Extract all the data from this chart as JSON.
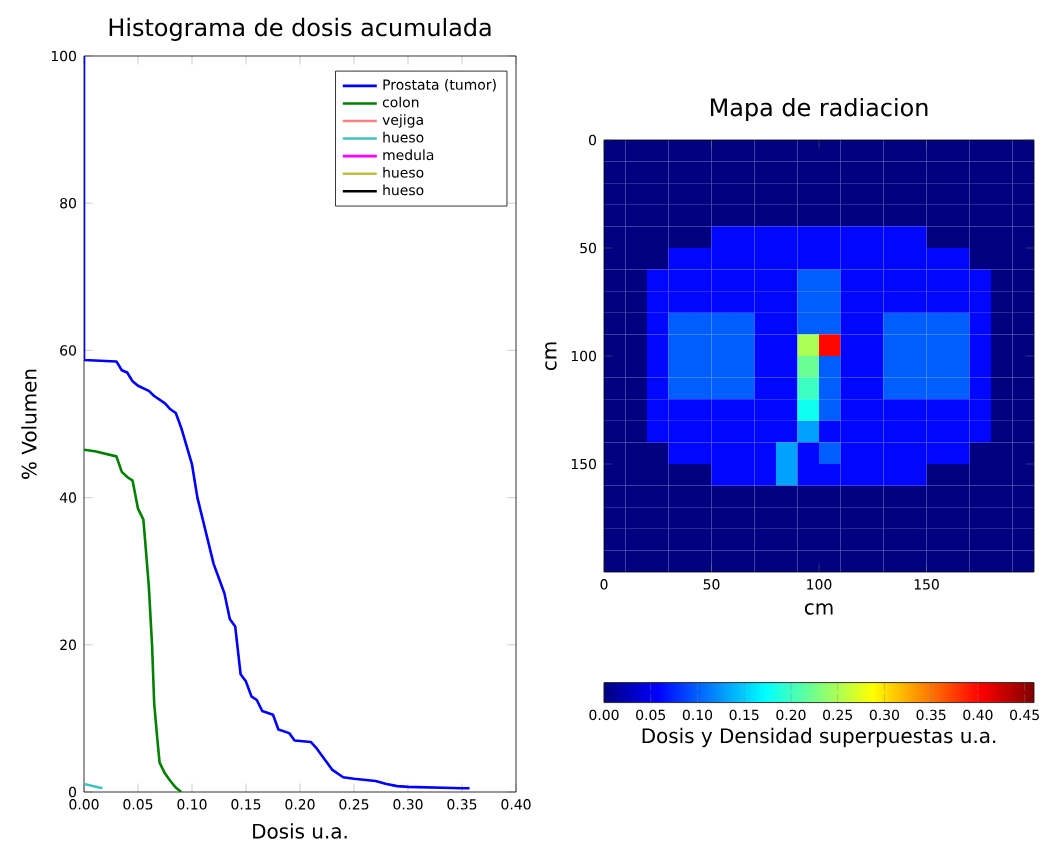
{
  "chart_data": [
    {
      "type": "line",
      "title": "Histograma de dosis acumulada",
      "xlabel": "Dosis u.a.",
      "ylabel": "% Volumen",
      "xlim": [
        0,
        0.4
      ],
      "ylim": [
        0,
        100
      ],
      "xticks": [
        {
          "value": 0,
          "label": "0.00"
        },
        {
          "value": 0.05,
          "label": "0.05"
        },
        {
          "value": 0.1,
          "label": "0.10"
        },
        {
          "value": 0.15,
          "label": "0.15"
        },
        {
          "value": 0.2,
          "label": "0.20"
        },
        {
          "value": 0.25,
          "label": "0.25"
        },
        {
          "value": 0.3,
          "label": "0.30"
        },
        {
          "value": 0.35,
          "label": "0.35"
        },
        {
          "value": 0.4,
          "label": "0.40"
        }
      ],
      "yticks": [
        0,
        20,
        40,
        60,
        80,
        100
      ],
      "grid": false,
      "legend": "top right",
      "series": [
        {
          "name": "Prostata (tumor)",
          "color": "#0000ff",
          "x": [
            0,
            0,
            0.03,
            0.035,
            0.04,
            0.045,
            0.05,
            0.06,
            0.065,
            0.07,
            0.075,
            0.08,
            0.085,
            0.09,
            0.095,
            0.1,
            0.105,
            0.11,
            0.115,
            0.12,
            0.125,
            0.13,
            0.135,
            0.14,
            0.145,
            0.15,
            0.155,
            0.16,
            0.165,
            0.175,
            0.18,
            0.19,
            0.195,
            0.21,
            0.215,
            0.22,
            0.225,
            0.23,
            0.24,
            0.25,
            0.27,
            0.28,
            0.29,
            0.3,
            0.35,
            0.357
          ],
          "values": [
            100,
            58.7,
            58.5,
            57.3,
            57,
            55.8,
            55.2,
            54.5,
            53.8,
            53.3,
            52.8,
            52,
            51.5,
            49.5,
            47,
            44.5,
            40,
            37,
            34,
            31,
            29,
            27,
            23.5,
            22.5,
            16,
            15,
            13,
            12.5,
            11,
            10.5,
            8.5,
            8,
            7,
            6.8,
            6,
            5,
            4,
            3,
            2,
            1.8,
            1.5,
            1.1,
            0.8,
            0.7,
            0.5,
            0.5
          ]
        },
        {
          "name": "colon",
          "color": "#008000",
          "x": [
            0,
            0.01,
            0.03,
            0.035,
            0.04,
            0.045,
            0.05,
            0.055,
            0.06,
            0.063,
            0.065,
            0.068,
            0.07,
            0.075,
            0.08,
            0.085,
            0.09
          ],
          "values": [
            46.5,
            46.3,
            45.6,
            43.5,
            42.8,
            42.3,
            38.5,
            37,
            28,
            20,
            12,
            7,
            4,
            2.5,
            1.5,
            0.6,
            0
          ]
        },
        {
          "name": "vejiga",
          "color": "#ff8080"
        },
        {
          "name": "hueso",
          "color": "#40c0c0",
          "x": [
            0,
            0.017
          ],
          "values": [
            1.1,
            0.5
          ]
        },
        {
          "name": "medula",
          "color": "#ff00ff"
        },
        {
          "name": "hueso",
          "color": "#c0c040"
        },
        {
          "name": "hueso",
          "color": "#000000"
        }
      ]
    },
    {
      "type": "heatmap",
      "title": "Mapa de radiacion",
      "xlabel": "cm",
      "ylabel": "cm",
      "clabel": "Dosis y Densidad superpuestas u.a.",
      "x": [
        5,
        15,
        25,
        35,
        45,
        55,
        65,
        75,
        85,
        95,
        105,
        115,
        125,
        135,
        145,
        155,
        165,
        175,
        185,
        195
      ],
      "y": [
        5,
        15,
        25,
        35,
        45,
        55,
        65,
        75,
        85,
        95,
        105,
        115,
        125,
        135,
        145,
        155,
        165,
        175,
        185,
        195
      ],
      "xlim": [
        0,
        200
      ],
      "ylim": [
        200,
        0
      ],
      "xticks": [
        0,
        50,
        100,
        150
      ],
      "yticks": [
        0,
        50,
        100,
        150
      ],
      "clim": [
        0,
        0.46
      ],
      "cticks": [
        {
          "value": 0,
          "label": "0.00"
        },
        {
          "value": 0.05,
          "label": "0.05"
        },
        {
          "value": 0.1,
          "label": "0.10"
        },
        {
          "value": 0.15,
          "label": "0.15"
        },
        {
          "value": 0.2,
          "label": "0.20"
        },
        {
          "value": 0.25,
          "label": "0.25"
        },
        {
          "value": 0.3,
          "label": "0.30"
        },
        {
          "value": 0.35,
          "label": "0.35"
        },
        {
          "value": 0.4,
          "label": "0.40"
        },
        {
          "value": 0.45,
          "label": "0.45"
        }
      ],
      "cells": [
        [
          0,
          0,
          0,
          0,
          0,
          0,
          0,
          0,
          0,
          0,
          0,
          0,
          0,
          0,
          0,
          0,
          0,
          0,
          0,
          0
        ],
        [
          0,
          0,
          0,
          0,
          0,
          0,
          0,
          0,
          0,
          0,
          0,
          0,
          0,
          0,
          0,
          0,
          0,
          0,
          0,
          0
        ],
        [
          0,
          0,
          0,
          0,
          0,
          0,
          0,
          0,
          0,
          0,
          0,
          0,
          0,
          0,
          0,
          0,
          0,
          0,
          0,
          0
        ],
        [
          0,
          0,
          0,
          0,
          0,
          0,
          0,
          0,
          0,
          0,
          0,
          0,
          0,
          0,
          0,
          0,
          0,
          0,
          0,
          0
        ],
        [
          0,
          0,
          0,
          0,
          0,
          0.06,
          0.06,
          0.06,
          0.06,
          0.06,
          0.06,
          0.06,
          0.06,
          0.06,
          0.06,
          0,
          0,
          0,
          0,
          0
        ],
        [
          0,
          0,
          0,
          0.06,
          0.06,
          0.06,
          0.06,
          0.06,
          0.06,
          0.06,
          0.06,
          0.06,
          0.06,
          0.06,
          0.06,
          0.06,
          0.06,
          0,
          0,
          0
        ],
        [
          0,
          0,
          0.06,
          0.06,
          0.06,
          0.06,
          0.06,
          0.06,
          0.06,
          0.1,
          0.1,
          0.06,
          0.06,
          0.06,
          0.06,
          0.06,
          0.06,
          0.06,
          0,
          0
        ],
        [
          0,
          0,
          0.06,
          0.06,
          0.06,
          0.06,
          0.06,
          0.06,
          0.06,
          0.1,
          0.1,
          0.06,
          0.06,
          0.06,
          0.06,
          0.06,
          0.06,
          0.06,
          0,
          0
        ],
        [
          0,
          0,
          0.06,
          0.1,
          0.1,
          0.1,
          0.1,
          0.06,
          0.06,
          0.1,
          0.1,
          0.06,
          0.06,
          0.1,
          0.1,
          0.1,
          0.1,
          0.06,
          0,
          0
        ],
        [
          0,
          0,
          0.06,
          0.1,
          0.1,
          0.1,
          0.1,
          0.06,
          0.06,
          0.25,
          0.4,
          0.06,
          0.06,
          0.1,
          0.1,
          0.1,
          0.1,
          0.06,
          0,
          0
        ],
        [
          0,
          0,
          0.06,
          0.1,
          0.1,
          0.1,
          0.1,
          0.06,
          0.06,
          0.22,
          0.1,
          0.06,
          0.06,
          0.1,
          0.1,
          0.1,
          0.1,
          0.06,
          0,
          0
        ],
        [
          0,
          0,
          0.06,
          0.1,
          0.1,
          0.1,
          0.1,
          0.06,
          0.06,
          0.2,
          0.1,
          0.06,
          0.06,
          0.1,
          0.1,
          0.1,
          0.1,
          0.06,
          0,
          0
        ],
        [
          0,
          0,
          0.06,
          0.06,
          0.06,
          0.06,
          0.06,
          0.06,
          0.06,
          0.18,
          0.1,
          0.06,
          0.06,
          0.06,
          0.06,
          0.06,
          0.06,
          0.06,
          0,
          0
        ],
        [
          0,
          0,
          0.06,
          0.06,
          0.06,
          0.06,
          0.06,
          0.06,
          0.06,
          0.13,
          0.06,
          0.06,
          0.06,
          0.06,
          0.06,
          0.06,
          0.06,
          0.06,
          0,
          0
        ],
        [
          0,
          0,
          0,
          0.06,
          0.06,
          0.06,
          0.06,
          0.06,
          0.13,
          0.06,
          0.1,
          0.06,
          0.06,
          0.06,
          0.06,
          0.06,
          0.06,
          0,
          0,
          0
        ],
        [
          0,
          0,
          0,
          0,
          0,
          0.06,
          0.06,
          0.06,
          0.13,
          0.06,
          0.06,
          0.06,
          0.06,
          0.06,
          0.06,
          0,
          0,
          0,
          0,
          0
        ],
        [
          0,
          0,
          0,
          0,
          0,
          0,
          0,
          0,
          0,
          0,
          0,
          0,
          0,
          0,
          0,
          0,
          0,
          0,
          0,
          0
        ],
        [
          0,
          0,
          0,
          0,
          0,
          0,
          0,
          0,
          0,
          0,
          0,
          0,
          0,
          0,
          0,
          0,
          0,
          0,
          0,
          0
        ],
        [
          0,
          0,
          0,
          0,
          0,
          0,
          0,
          0,
          0,
          0,
          0,
          0,
          0,
          0,
          0,
          0,
          0,
          0,
          0,
          0
        ],
        [
          0,
          0,
          0,
          0,
          0,
          0,
          0,
          0,
          0,
          0,
          0,
          0,
          0,
          0,
          0,
          0,
          0,
          0,
          0,
          0
        ]
      ]
    }
  ]
}
